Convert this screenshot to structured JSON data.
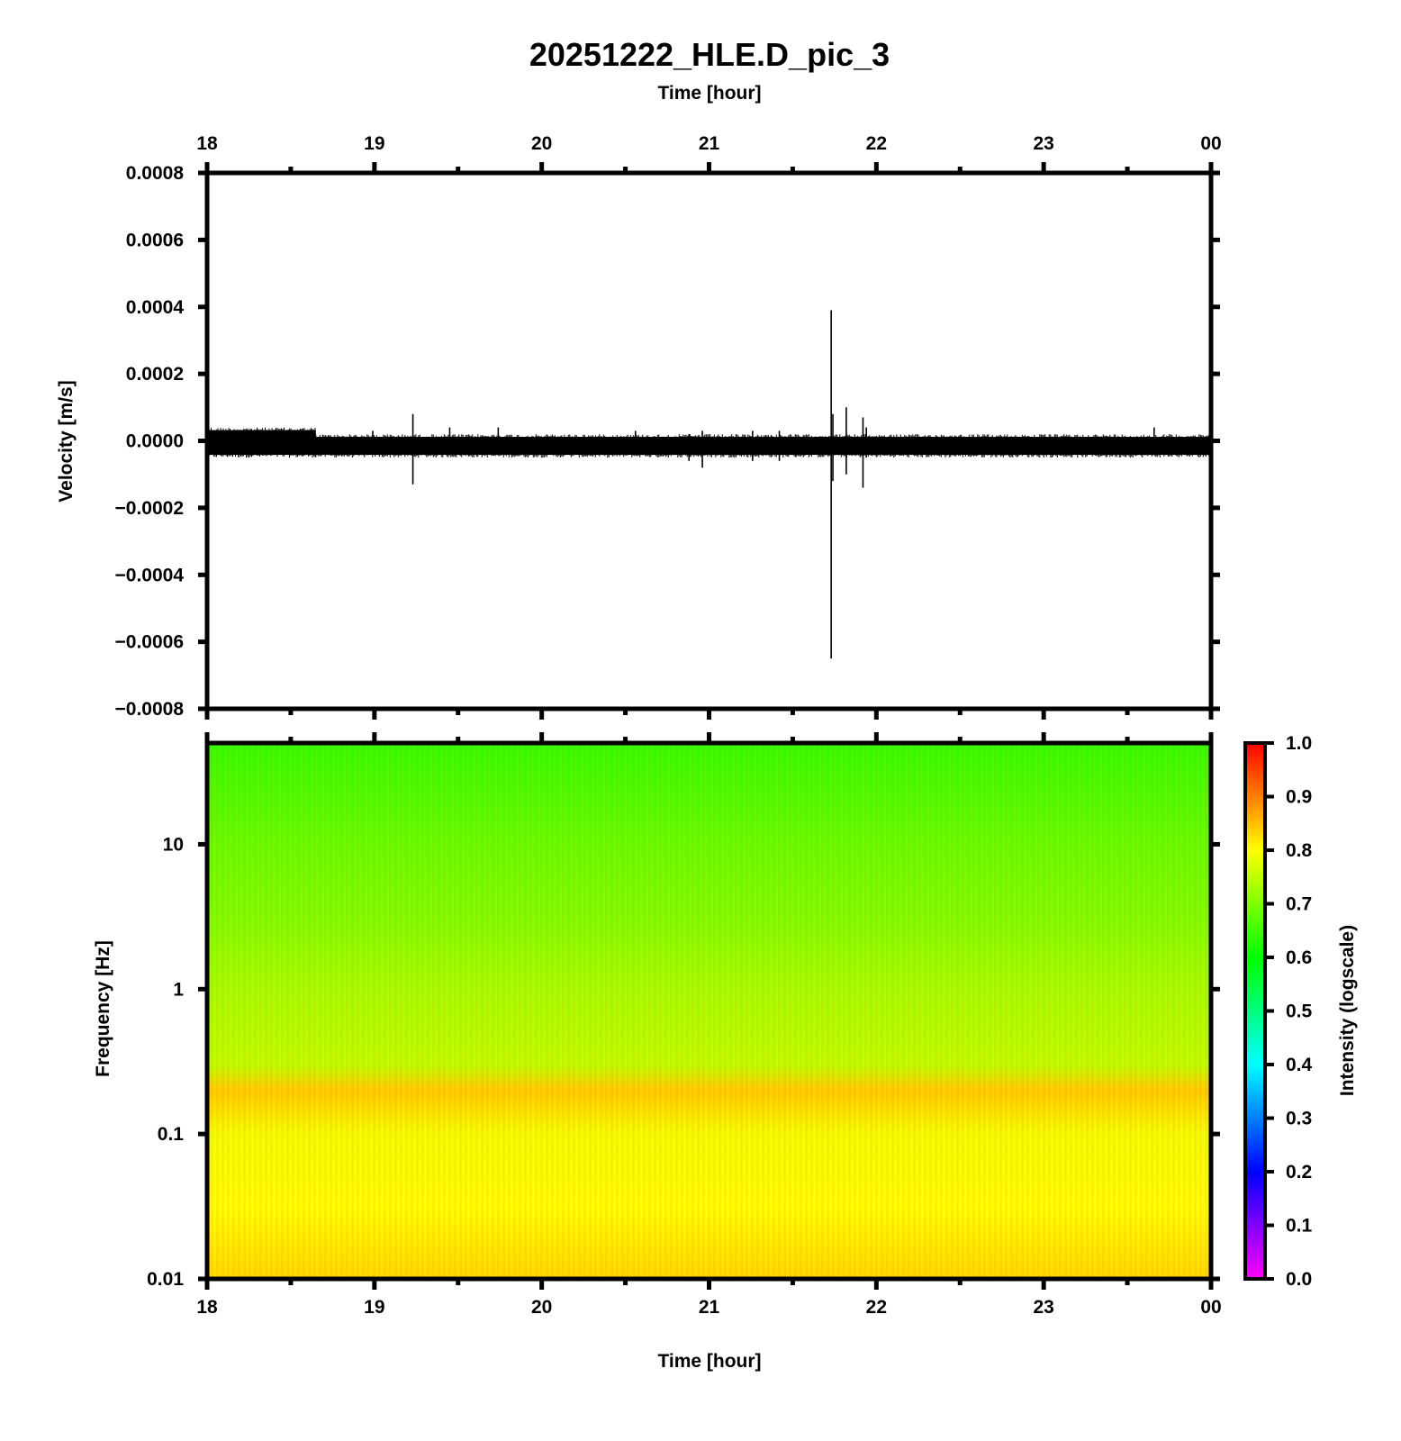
{
  "chart_data": [
    {
      "type": "line",
      "title": "20251222_HLE.D_pic_3",
      "xlabel": "Time [hour]",
      "ylabel": "Velocity [m/s]",
      "x_ticks": [
        "18",
        "19",
        "20",
        "21",
        "22",
        "23",
        "00"
      ],
      "y_ticks": [
        "0.0008",
        "0.0006",
        "0.0004",
        "0.0002",
        "0.0000",
        "−0.0002",
        "−0.0004",
        "−0.0006",
        "−0.0008"
      ],
      "xlim": [
        18,
        24
      ],
      "ylim": [
        -0.0008,
        0.0008
      ],
      "grid": false,
      "series": [
        {
          "color": "#000000",
          "baseline": {
            "segments": [
              {
                "x_start": 18.0,
                "x_end": 18.65,
                "y_min": -5e-05,
                "y_max": 4e-05
              },
              {
                "x_start": 18.65,
                "x_end": 24.0,
                "y_min": -5e-05,
                "y_max": 2e-05
              }
            ]
          },
          "spikes": [
            {
              "x": 18.99,
              "y_min": -3e-05,
              "y_max": 3e-05
            },
            {
              "x": 19.23,
              "y_min": -0.00013,
              "y_max": 8e-05
            },
            {
              "x": 19.45,
              "y_min": -4e-05,
              "y_max": 4e-05
            },
            {
              "x": 19.74,
              "y_min": -3e-05,
              "y_max": 4e-05
            },
            {
              "x": 20.56,
              "y_min": -3e-05,
              "y_max": 3e-05
            },
            {
              "x": 20.88,
              "y_min": -6e-05,
              "y_max": 2e-05
            },
            {
              "x": 20.96,
              "y_min": -8e-05,
              "y_max": 3e-05
            },
            {
              "x": 21.26,
              "y_min": -6e-05,
              "y_max": 3e-05
            },
            {
              "x": 21.42,
              "y_min": -6e-05,
              "y_max": 3e-05
            },
            {
              "x": 21.73,
              "y_min": -0.00065,
              "y_max": 0.00039
            },
            {
              "x": 21.74,
              "y_min": -0.00012,
              "y_max": 8e-05
            },
            {
              "x": 21.82,
              "y_min": -0.0001,
              "y_max": 0.0001
            },
            {
              "x": 21.92,
              "y_min": -0.00014,
              "y_max": 7e-05
            },
            {
              "x": 21.94,
              "y_min": -5e-05,
              "y_max": 4e-05
            },
            {
              "x": 23.66,
              "y_min": -3e-05,
              "y_max": 4e-05
            }
          ]
        }
      ]
    },
    {
      "type": "heatmap",
      "xlabel": "Time [hour]",
      "ylabel": "Frequency [Hz]",
      "x_ticks": [
        "18",
        "19",
        "20",
        "21",
        "22",
        "23",
        "00"
      ],
      "y_ticks": [
        "10",
        "1",
        "0.1",
        "0.01"
      ],
      "xlim": [
        18,
        24
      ],
      "ylim": [
        0.01,
        50
      ],
      "y_scale": "log",
      "colormap": [
        "#ff00ff",
        "#0000ff",
        "#00ffff",
        "#00ff00",
        "#ffff00",
        "#ff0000"
      ],
      "intensity_profile": [
        {
          "frequency": 50,
          "intensity": 0.64
        },
        {
          "frequency": 10,
          "intensity": 0.68
        },
        {
          "frequency": 3,
          "intensity": 0.7
        },
        {
          "frequency": 1,
          "intensity": 0.73
        },
        {
          "frequency": 0.3,
          "intensity": 0.75
        },
        {
          "frequency": 0.2,
          "intensity": 0.84
        },
        {
          "frequency": 0.1,
          "intensity": 0.79
        },
        {
          "frequency": 0.03,
          "intensity": 0.8
        },
        {
          "frequency": 0.01,
          "intensity": 0.83
        }
      ],
      "colorbar": {
        "label": "Intensity (logscale)",
        "ticks": [
          "1.0",
          "0.9",
          "0.8",
          "0.7",
          "0.6",
          "0.5",
          "0.4",
          "0.3",
          "0.2",
          "0.1",
          "0.0"
        ],
        "range": [
          0,
          1
        ]
      }
    }
  ]
}
